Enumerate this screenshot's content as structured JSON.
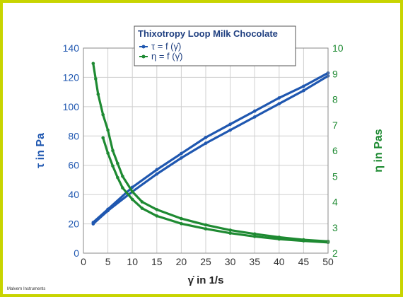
{
  "chart_data": {
    "type": "line",
    "title": "Thixotropy Loop Milk Chocolate",
    "xlabel": "γ̇ in 1/s",
    "ylabel_left": "τ in Pa",
    "ylabel_right": "η in Pas",
    "xlim": [
      0,
      50
    ],
    "ylim_left": [
      0,
      140
    ],
    "ylim_right": [
      2,
      10
    ],
    "xticks": [
      0,
      5,
      10,
      15,
      20,
      25,
      30,
      35,
      40,
      45,
      50
    ],
    "yticks_left": [
      0,
      20,
      40,
      60,
      80,
      100,
      120,
      140
    ],
    "yticks_right": [
      2,
      3,
      4,
      5,
      6,
      7,
      8,
      9,
      10
    ],
    "grid": true,
    "legend_position": "top-center",
    "series": [
      {
        "name": "τ = f (γ̇)",
        "axis": "left",
        "color": "#1f57b0",
        "branches": [
          {
            "x": [
              2,
              5,
              10,
              15,
              20,
              25,
              30,
              35,
              40,
              45,
              50
            ],
            "y": [
              21,
              30,
              45,
              57,
              68,
              79,
              88,
              97,
              106,
              114,
              123
            ]
          },
          {
            "x": [
              50,
              45,
              40,
              35,
              30,
              25,
              20,
              15,
              10,
              5,
              2
            ],
            "y": [
              121,
              111,
              102,
              93,
              84,
              75,
              65,
              54,
              42,
              29,
              20
            ]
          }
        ]
      },
      {
        "name": "η = f (γ̇)",
        "axis": "right",
        "color": "#1e8a32",
        "branches": [
          {
            "x": [
              2,
              2.5,
              3,
              4,
              5,
              6,
              7,
              8,
              10,
              12,
              15,
              20,
              25,
              30,
              35,
              40,
              45,
              50
            ],
            "y": [
              9.4,
              8.8,
              8.2,
              7.4,
              6.8,
              6.0,
              5.5,
              5.0,
              4.4,
              4.0,
              3.7,
              3.35,
              3.1,
              2.9,
              2.75,
              2.62,
              2.52,
              2.46
            ]
          },
          {
            "x": [
              50,
              45,
              40,
              35,
              30,
              25,
              20,
              15,
              12,
              10,
              8,
              7,
              6,
              5,
              4
            ],
            "y": [
              2.42,
              2.48,
              2.55,
              2.65,
              2.78,
              2.95,
              3.15,
              3.45,
              3.75,
              4.1,
              4.55,
              4.95,
              5.4,
              5.9,
              6.5
            ]
          }
        ]
      }
    ]
  },
  "footnote": "Malvern Instruments"
}
